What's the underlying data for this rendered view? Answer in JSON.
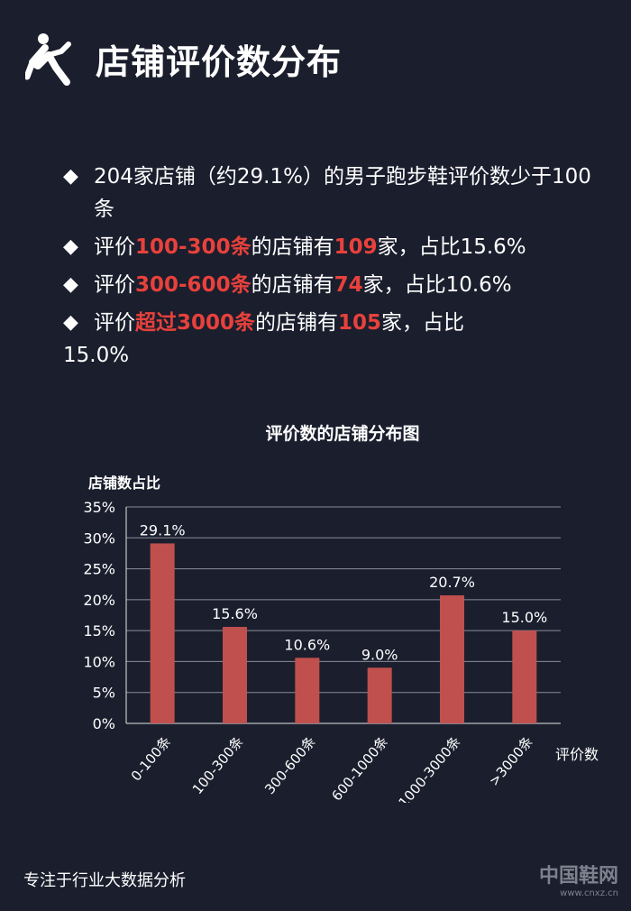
{
  "header": {
    "title": "店铺评价数分布",
    "icon": "runner-icon"
  },
  "bullets": [
    {
      "parts": [
        {
          "t": "204家店铺（约29.1%）的男子跑步鞋评价数少于100条",
          "hl": false
        }
      ]
    },
    {
      "parts": [
        {
          "t": "评价",
          "hl": false
        },
        {
          "t": "100-300条",
          "hl": true
        },
        {
          "t": "的店铺有",
          "hl": false
        },
        {
          "t": "109",
          "hl": true
        },
        {
          "t": "家，占比15.6%",
          "hl": false
        }
      ]
    },
    {
      "parts": [
        {
          "t": "评价",
          "hl": false
        },
        {
          "t": "300-600条",
          "hl": true
        },
        {
          "t": "的店铺有",
          "hl": false
        },
        {
          "t": "74",
          "hl": true
        },
        {
          "t": "家，占比10.6%",
          "hl": false
        }
      ]
    },
    {
      "parts": [
        {
          "t": "评价",
          "hl": false
        },
        {
          "t": "超过3000条",
          "hl": true
        },
        {
          "t": "的店铺有",
          "hl": false
        },
        {
          "t": "105",
          "hl": true
        },
        {
          "t": "家，占比",
          "hl": false
        }
      ],
      "tail": "15.0%"
    }
  ],
  "bullet_symbol": "◆",
  "footer": "专注于行业大数据分析",
  "logo": {
    "name": "中国鞋网",
    "url": "www.cnxz.cn"
  },
  "colors": {
    "background": "#1b1e2d",
    "bar": "#c0504d",
    "highlight": "#e8413c"
  },
  "chart_data": {
    "type": "bar",
    "title": "评价数的店铺分布图",
    "ylabel": "店铺数占比",
    "xlabel": "评价数",
    "categories": [
      "0-100条",
      "100-300条",
      "300-600条",
      "600-1000条",
      "1000-3000条",
      ">3000条"
    ],
    "values": [
      29.1,
      15.6,
      10.6,
      9.0,
      20.7,
      15.0
    ],
    "value_labels": [
      "29.1%",
      "15.6%",
      "10.6%",
      "9.0%",
      "20.7%",
      "15.0%"
    ],
    "yticks": [
      "0%",
      "5%",
      "10%",
      "15%",
      "20%",
      "25%",
      "30%",
      "35%"
    ],
    "ylim": [
      0,
      35
    ],
    "grid": true,
    "legend": "none"
  }
}
